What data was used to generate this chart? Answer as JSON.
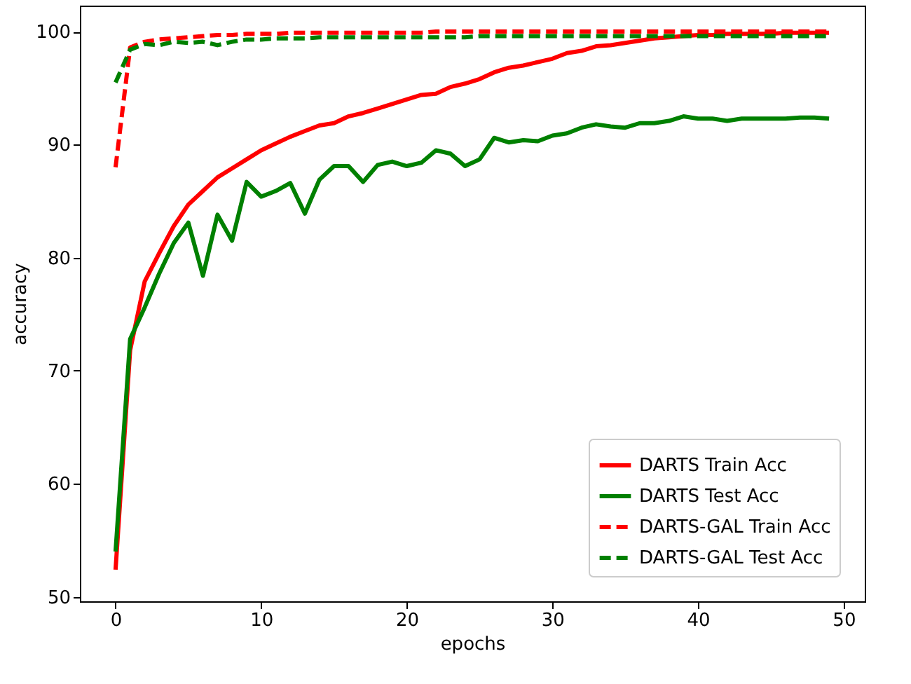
{
  "chart_data": {
    "type": "line",
    "xlabel": "epochs",
    "ylabel": "accuracy",
    "x": [
      0,
      1,
      2,
      3,
      4,
      5,
      6,
      7,
      8,
      9,
      10,
      11,
      12,
      13,
      14,
      15,
      16,
      17,
      18,
      19,
      20,
      21,
      22,
      23,
      24,
      25,
      26,
      27,
      28,
      29,
      30,
      31,
      32,
      33,
      34,
      35,
      36,
      37,
      38,
      39,
      40,
      41,
      42,
      43,
      44,
      45,
      46,
      47,
      48,
      49
    ],
    "series": [
      {
        "name": "DARTS Train Acc",
        "color": "#ff0000",
        "line_style": "solid",
        "values": [
          52.4,
          71.8,
          77.9,
          80.4,
          82.8,
          84.7,
          85.9,
          87.1,
          87.9,
          88.7,
          89.5,
          90.1,
          90.7,
          91.2,
          91.7,
          91.9,
          92.5,
          92.8,
          93.2,
          93.6,
          94.0,
          94.4,
          94.5,
          95.1,
          95.4,
          95.8,
          96.4,
          96.8,
          97.0,
          97.3,
          97.6,
          98.1,
          98.3,
          98.7,
          98.8,
          99.0,
          99.2,
          99.4,
          99.5,
          99.6,
          99.7,
          99.7,
          99.8,
          99.8,
          99.8,
          99.8,
          99.9,
          99.9,
          99.9,
          99.9
        ]
      },
      {
        "name": "DARTS Test Acc",
        "color": "#008000",
        "line_style": "solid",
        "values": [
          54.0,
          72.8,
          75.6,
          78.6,
          81.3,
          83.1,
          78.4,
          83.8,
          81.5,
          86.7,
          85.4,
          85.9,
          86.6,
          83.9,
          86.9,
          88.1,
          88.1,
          86.7,
          88.2,
          88.5,
          88.1,
          88.4,
          89.5,
          89.2,
          88.1,
          88.7,
          90.6,
          90.2,
          90.4,
          90.3,
          90.8,
          91.0,
          91.5,
          91.8,
          91.6,
          91.5,
          91.9,
          91.9,
          92.1,
          92.5,
          92.3,
          92.3,
          92.1,
          92.3,
          92.3,
          92.3,
          92.3,
          92.4,
          92.4,
          92.3
        ]
      },
      {
        "name": "DARTS-GAL Train Acc",
        "color": "#ff0000",
        "line_style": "dashed",
        "values": [
          88.0,
          98.6,
          99.1,
          99.3,
          99.4,
          99.5,
          99.6,
          99.7,
          99.7,
          99.8,
          99.8,
          99.8,
          99.9,
          99.9,
          99.9,
          99.9,
          99.9,
          99.9,
          99.9,
          99.9,
          99.9,
          99.9,
          100.0,
          100.0,
          100.0,
          100.0,
          100.0,
          100.0,
          100.0,
          100.0,
          100.0,
          100.0,
          100.0,
          100.0,
          100.0,
          100.0,
          100.0,
          100.0,
          100.0,
          100.0,
          100.0,
          100.0,
          100.0,
          100.0,
          100.0,
          100.0,
          100.0,
          100.0,
          100.0,
          100.0
        ]
      },
      {
        "name": "DARTS-GAL Test Acc",
        "color": "#008000",
        "line_style": "dashed",
        "values": [
          95.5,
          98.4,
          98.9,
          98.8,
          99.1,
          99.0,
          99.1,
          98.8,
          99.1,
          99.3,
          99.3,
          99.4,
          99.4,
          99.4,
          99.5,
          99.5,
          99.5,
          99.5,
          99.5,
          99.5,
          99.5,
          99.5,
          99.5,
          99.5,
          99.5,
          99.6,
          99.6,
          99.6,
          99.6,
          99.6,
          99.6,
          99.6,
          99.6,
          99.6,
          99.6,
          99.6,
          99.6,
          99.6,
          99.6,
          99.6,
          99.6,
          99.6,
          99.6,
          99.6,
          99.6,
          99.6,
          99.6,
          99.6,
          99.6,
          99.6
        ]
      }
    ],
    "xlim": [
      -2.45,
      51.45
    ],
    "ylim": [
      49.6,
      102.3
    ],
    "xticks": [
      0,
      10,
      20,
      30,
      40,
      50
    ],
    "yticks": [
      50,
      60,
      70,
      80,
      90,
      100
    ],
    "grid": false,
    "legend": "bottom right"
  }
}
